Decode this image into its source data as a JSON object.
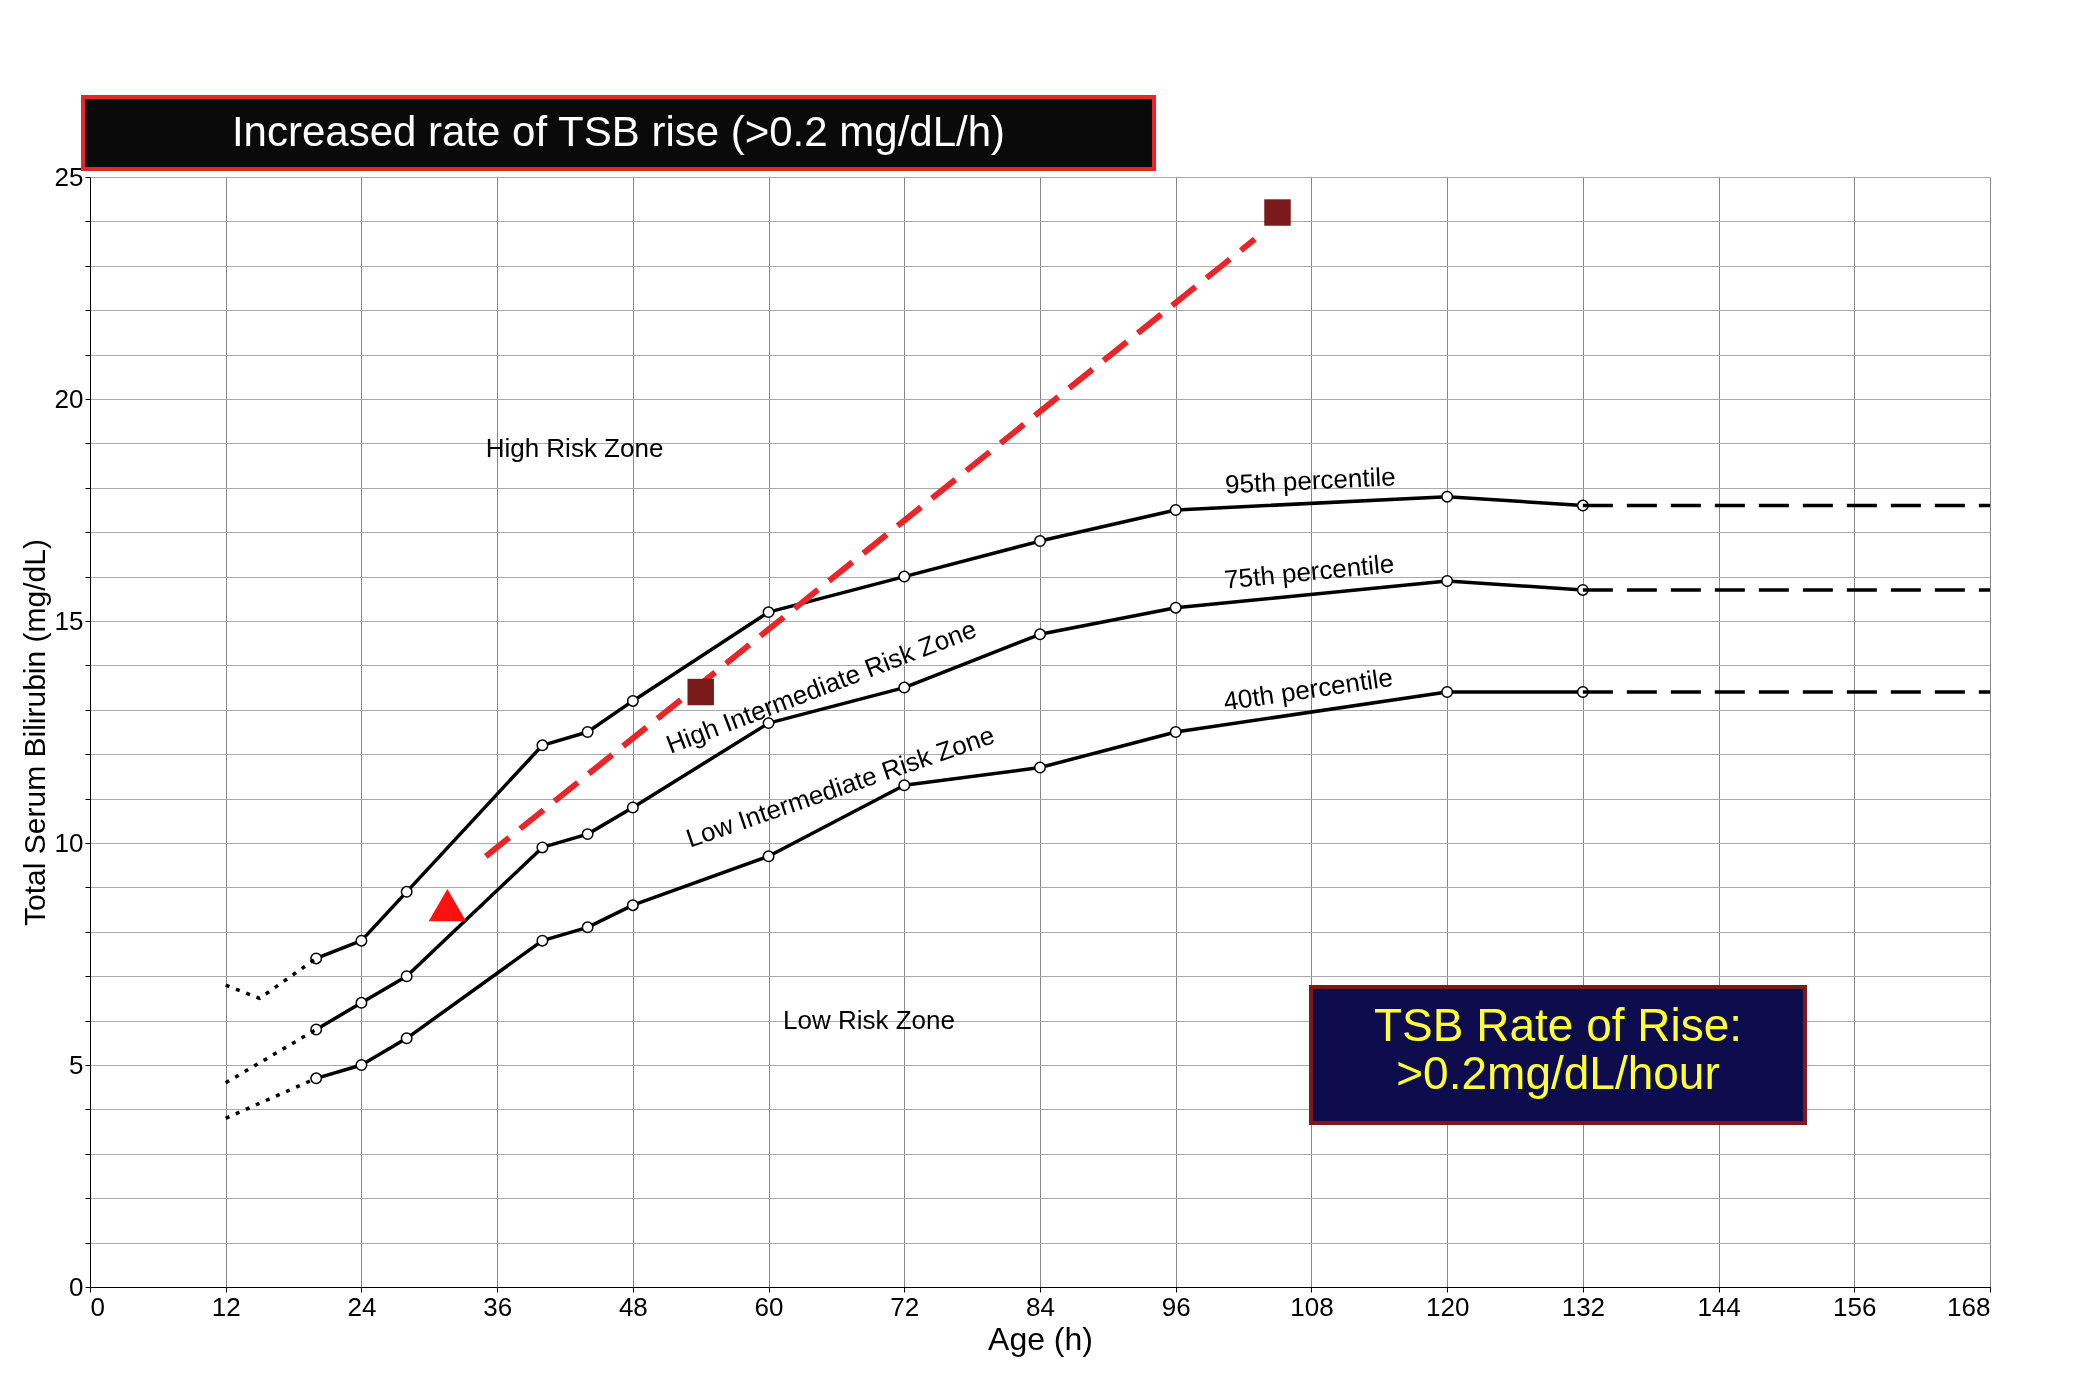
{
  "chart_data": {
    "type": "line",
    "title": "Increased rate of TSB rise (>0.2 mg/dL/h)",
    "xlabel": "Age (h)",
    "ylabel": "Total Serum Bilirubin (mg/dL)",
    "xlim": [
      0,
      168
    ],
    "ylim": [
      0,
      25
    ],
    "xticks": [
      0,
      12,
      24,
      36,
      48,
      60,
      72,
      84,
      96,
      108,
      120,
      132,
      144,
      156,
      168
    ],
    "yticks": [
      0,
      {
        "value": 1,
        "label": null
      },
      {
        "value": 2,
        "label": null
      },
      {
        "value": 3,
        "label": null
      },
      {
        "value": 4,
        "label": null
      },
      5,
      {
        "value": 6,
        "label": null
      },
      {
        "value": 7,
        "label": null
      },
      {
        "value": 8,
        "label": null
      },
      {
        "value": 9,
        "label": null
      },
      10,
      {
        "value": 11,
        "label": null
      },
      {
        "value": 12,
        "label": null
      },
      {
        "value": 13,
        "label": null
      },
      {
        "value": 14,
        "label": null
      },
      15,
      {
        "value": 16,
        "label": null
      },
      {
        "value": 17,
        "label": null
      },
      {
        "value": 18,
        "label": null
      },
      {
        "value": 19,
        "label": null
      },
      20,
      {
        "value": 21,
        "label": null
      },
      {
        "value": 22,
        "label": null
      },
      {
        "value": 23,
        "label": null
      },
      {
        "value": 24,
        "label": null
      },
      25
    ],
    "grid": true,
    "series": [
      {
        "name": "95th percentile",
        "color": "#000000",
        "marker": "circle",
        "line_style": "solid",
        "x": [
          20,
          24,
          28,
          40,
          44,
          48,
          60,
          72,
          84,
          96,
          120,
          132
        ],
        "values": [
          7.4,
          7.8,
          8.9,
          12.2,
          12.5,
          13.2,
          15.2,
          16.0,
          16.8,
          17.5,
          17.8,
          17.6
        ]
      },
      {
        "name": "75th percentile",
        "color": "#000000",
        "marker": "circle",
        "line_style": "solid",
        "x": [
          20,
          24,
          28,
          40,
          44,
          48,
          60,
          72,
          84,
          96,
          120,
          132
        ],
        "values": [
          5.8,
          6.4,
          7.0,
          9.9,
          10.2,
          10.8,
          12.7,
          13.5,
          14.7,
          15.3,
          15.9,
          15.7
        ]
      },
      {
        "name": "40th percentile",
        "color": "#000000",
        "marker": "circle",
        "line_style": "solid",
        "x": [
          20,
          24,
          28,
          40,
          44,
          48,
          60,
          72,
          84,
          96,
          120,
          132
        ],
        "values": [
          4.7,
          5.0,
          5.6,
          7.8,
          8.1,
          8.6,
          9.7,
          11.3,
          11.7,
          12.5,
          13.4,
          13.4
        ]
      },
      {
        "color": "#000000",
        "marker": "none",
        "line_style": "dotted",
        "x": [
          12,
          15,
          20
        ],
        "values": [
          6.8,
          6.5,
          7.4
        ]
      },
      {
        "color": "#000000",
        "marker": "none",
        "line_style": "dotted",
        "x": [
          12,
          20
        ],
        "values": [
          4.6,
          5.8
        ]
      },
      {
        "color": "#000000",
        "marker": "none",
        "line_style": "dotted",
        "x": [
          12,
          20
        ],
        "values": [
          3.8,
          4.7
        ]
      },
      {
        "color": "#000000",
        "marker": "none",
        "line_style": "dashed",
        "x": [
          132,
          168
        ],
        "values": [
          17.6,
          17.6
        ]
      },
      {
        "color": "#000000",
        "marker": "none",
        "line_style": "dashed",
        "x": [
          132,
          168
        ],
        "values": [
          15.7,
          15.7
        ]
      },
      {
        "color": "#000000",
        "marker": "none",
        "line_style": "dashed",
        "x": [
          132,
          168
        ],
        "values": [
          13.4,
          13.4
        ]
      },
      {
        "color": "#e8262a",
        "marker": "none",
        "line_style": "dashed",
        "x": [
          103,
          35
        ],
        "values": [
          23.6,
          9.7
        ]
      },
      {
        "type": "scatter",
        "color": "#7b1a1a",
        "marker": "square",
        "x": [
          54,
          105
        ],
        "values": [
          13.4,
          24.2
        ]
      },
      {
        "type": "scatter",
        "color": "#ff1010",
        "marker": "triangle",
        "x": [
          31.6
        ],
        "values": [
          8.6
        ]
      }
    ],
    "annotations": [
      "High Risk Zone",
      "High Intermediate Risk Zone",
      "Low Intermediate Risk Zone",
      "Low Risk Zone",
      "TSB Rate of Rise:\n>0.2mg/dL/hour"
    ]
  }
}
